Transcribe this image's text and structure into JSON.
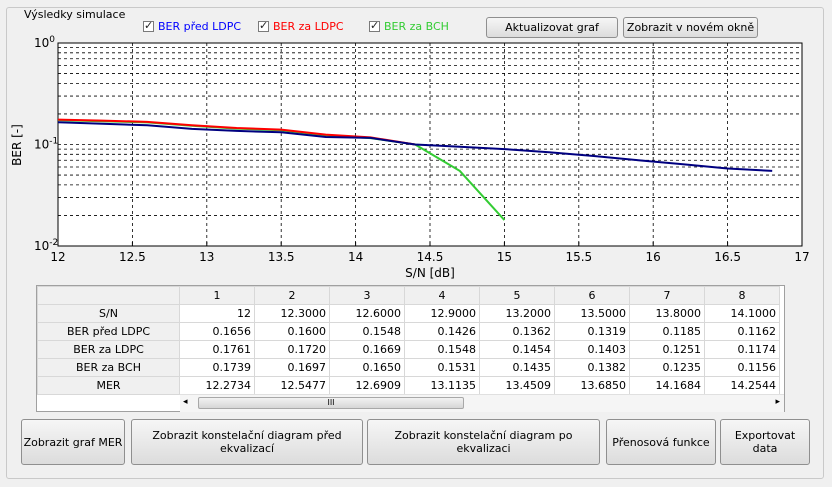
{
  "panel_title": "Výsledky simulace",
  "checkboxes": [
    {
      "label": "BER před LDPC",
      "color": "#0000ff",
      "checked": true
    },
    {
      "label": "BER za LDPC",
      "color": "#ff0000",
      "checked": true
    },
    {
      "label": "BER za BCH",
      "color": "#33cc33",
      "checked": true
    }
  ],
  "top_buttons": {
    "update": "Aktualizovat graf",
    "new_window": "Zobrazit v novém okně"
  },
  "chart_data": {
    "type": "line",
    "xlabel": "S/N [dB]",
    "ylabel": "BER [-]",
    "xlim": [
      12,
      17
    ],
    "ylim": [
      0.01,
      1
    ],
    "yscale": "log",
    "x_ticks": [
      "12",
      "12.5",
      "13",
      "13.5",
      "14",
      "14.5",
      "15",
      "15.5",
      "16",
      "16.5",
      "17"
    ],
    "y_ticks": [
      {
        "base": "10",
        "exp": "0"
      },
      {
        "base": "10",
        "exp": "-1"
      },
      {
        "base": "10",
        "exp": "-2"
      }
    ],
    "grid": true,
    "series": [
      {
        "name": "BER za BCH",
        "color": "#33cc33",
        "x": [
          12,
          12.3,
          12.6,
          12.9,
          13.2,
          13.5,
          13.8,
          14.1,
          14.4,
          14.7,
          15.0
        ],
        "y": [
          0.1739,
          0.1697,
          0.165,
          0.1531,
          0.1435,
          0.1382,
          0.1235,
          0.1156,
          0.1,
          0.055,
          0.018
        ]
      },
      {
        "name": "BER za LDPC",
        "color": "#ff0000",
        "x": [
          12,
          12.3,
          12.6,
          12.9,
          13.2,
          13.5,
          13.8,
          14.1,
          14.4
        ],
        "y": [
          0.1761,
          0.172,
          0.1669,
          0.1548,
          0.1454,
          0.1403,
          0.1251,
          0.1174,
          0.1
        ]
      },
      {
        "name": "BER před LDPC",
        "color": "#000080",
        "x": [
          12,
          12.3,
          12.6,
          12.9,
          13.2,
          13.5,
          13.8,
          14.1,
          14.4,
          14.7,
          15.0,
          15.3,
          15.6,
          15.9,
          16.2,
          16.5,
          16.8
        ],
        "y": [
          0.1656,
          0.16,
          0.1548,
          0.1426,
          0.1362,
          0.1319,
          0.1185,
          0.1162,
          0.1,
          0.095,
          0.09,
          0.084,
          0.077,
          0.07,
          0.064,
          0.058,
          0.055
        ]
      }
    ]
  },
  "table": {
    "columns": [
      "1",
      "2",
      "3",
      "4",
      "5",
      "6",
      "7",
      "8"
    ],
    "rows": [
      {
        "label": "S/N",
        "values": [
          "12",
          "12.3000",
          "12.6000",
          "12.9000",
          "13.2000",
          "13.5000",
          "13.8000",
          "14.1000"
        ]
      },
      {
        "label": "BER před LDPC",
        "values": [
          "0.1656",
          "0.1600",
          "0.1548",
          "0.1426",
          "0.1362",
          "0.1319",
          "0.1185",
          "0.1162"
        ]
      },
      {
        "label": "BER za LDPC",
        "values": [
          "0.1761",
          "0.1720",
          "0.1669",
          "0.1548",
          "0.1454",
          "0.1403",
          "0.1251",
          "0.1174"
        ]
      },
      {
        "label": "BER za BCH",
        "values": [
          "0.1739",
          "0.1697",
          "0.1650",
          "0.1531",
          "0.1435",
          "0.1382",
          "0.1235",
          "0.1156"
        ]
      },
      {
        "label": "MER",
        "values": [
          "12.2734",
          "12.5477",
          "12.6909",
          "13.1135",
          "13.4509",
          "13.6850",
          "14.1684",
          "14.2544"
        ]
      }
    ],
    "scroll_grip": "III"
  },
  "bottom_buttons": [
    "Zobrazit graf MER",
    "Zobrazit konstelační diagram před ekvalizací",
    "Zobrazit konstelační diagram po ekvalizaci",
    "Přenosová funkce",
    "Exportovat data"
  ]
}
